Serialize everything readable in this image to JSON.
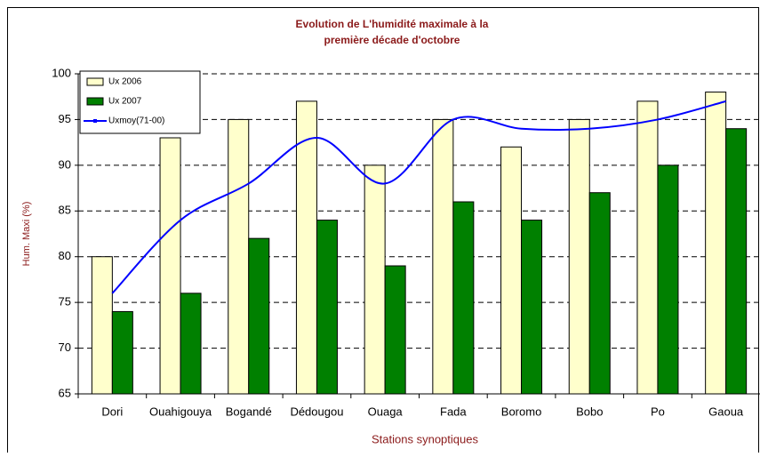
{
  "chart_data": {
    "type": "bar",
    "title": [
      "Evolution de L'humidité maximale  à la",
      "première décade d'octobre"
    ],
    "x_label": "Stations synoptiques",
    "y_label": "Hum. Maxi (%)",
    "categories": [
      "Dori",
      "Ouahigouya",
      "Bogandé",
      "Dédougou",
      "Ouaga",
      "Fada",
      "Boromo",
      "Bobo",
      "Po",
      "Gaoua"
    ],
    "series": [
      {
        "name": "Ux 2006",
        "type": "bar",
        "color": "#ffffcc",
        "values": [
          80,
          93,
          95,
          97,
          90,
          95,
          92,
          95,
          97,
          98
        ]
      },
      {
        "name": "Ux 2007",
        "type": "bar",
        "color": "#008000",
        "values": [
          74,
          76,
          82,
          84,
          79,
          86,
          84,
          87,
          90,
          94
        ]
      },
      {
        "name": "Uxmoy(71-00)",
        "type": "line",
        "color": "#0000ff",
        "values": [
          76,
          84,
          88,
          93,
          88,
          95,
          94,
          94,
          95,
          97
        ]
      }
    ],
    "ylim": [
      65,
      100
    ],
    "yticks": [
      65,
      70,
      75,
      80,
      85,
      90,
      95,
      100
    ],
    "grid": true,
    "legend": "top-left"
  }
}
